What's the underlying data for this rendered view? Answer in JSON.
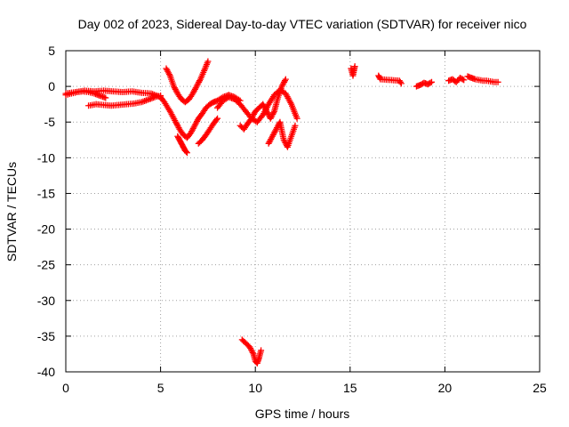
{
  "chart_data": {
    "type": "scatter",
    "title": "Day 002 of 2023, Sidereal Day-to-day VTEC variation (SDTVAR) for receiver nico",
    "xlabel": "GPS time / hours",
    "ylabel": "SDTVAR / TECUs",
    "xlim": [
      0,
      25
    ],
    "ylim": [
      -40,
      5
    ],
    "xticks": [
      0,
      5,
      10,
      15,
      20,
      25
    ],
    "yticks": [
      5,
      0,
      -5,
      -10,
      -15,
      -20,
      -25,
      -30,
      -35,
      -40
    ],
    "xtick_labels": [
      "0",
      "5",
      "10",
      "15",
      "20",
      "25"
    ],
    "ytick_labels": [
      "5",
      "0",
      "-5",
      "-10",
      "-15",
      "-20",
      "-25",
      "-30",
      "-35",
      "-40"
    ],
    "grid": true,
    "legend": "none",
    "marker": "plus",
    "color": "#ff0000",
    "series": [
      {
        "name": "track-1",
        "x": [
          0.0,
          0.5,
          1.0,
          1.5,
          2.0,
          2.5,
          3.0,
          3.5,
          4.0,
          4.5,
          5.0,
          5.2,
          5.5,
          5.8,
          6.0,
          6.2,
          6.4,
          6.6,
          6.8,
          7.0,
          7.2,
          7.4,
          7.6,
          7.8,
          8.0,
          8.3,
          8.6,
          8.9,
          9.2
        ],
        "y": [
          -1.0,
          -0.8,
          -0.6,
          -0.7,
          -0.6,
          -0.7,
          -0.8,
          -0.7,
          -0.9,
          -1.0,
          -1.5,
          -2.2,
          -3.5,
          -5.0,
          -6.0,
          -6.8,
          -7.2,
          -6.5,
          -5.5,
          -4.5,
          -3.8,
          -3.0,
          -2.5,
          -2.2,
          -2.0,
          -1.5,
          -1.2,
          -1.5,
          -2.0
        ]
      },
      {
        "name": "track-2",
        "x": [
          0.0,
          0.3,
          0.6,
          0.9,
          1.2,
          1.5,
          1.8,
          2.1
        ],
        "y": [
          -1.2,
          -1.0,
          -0.8,
          -0.7,
          -0.8,
          -1.0,
          -1.3,
          -1.6
        ]
      },
      {
        "name": "track-3",
        "x": [
          1.2,
          1.6,
          2.0,
          2.4,
          2.8,
          3.2,
          3.6,
          4.0,
          4.4,
          4.7,
          5.0
        ],
        "y": [
          -2.7,
          -2.5,
          -2.6,
          -2.7,
          -2.6,
          -2.5,
          -2.4,
          -2.2,
          -1.8,
          -1.5,
          -1.3
        ]
      },
      {
        "name": "track-4",
        "x": [
          5.3,
          5.5,
          5.7,
          5.9,
          6.1,
          6.3,
          6.5,
          6.7,
          6.9,
          7.1,
          7.3,
          7.5
        ],
        "y": [
          2.5,
          1.5,
          0.0,
          -1.0,
          -1.8,
          -2.2,
          -1.8,
          -1.0,
          0.0,
          1.0,
          2.2,
          3.5
        ]
      },
      {
        "name": "track-5",
        "x": [
          5.9,
          6.0,
          6.1,
          6.2,
          6.3,
          6.4
        ],
        "y": [
          -7.0,
          -7.5,
          -8.0,
          -8.5,
          -9.0,
          -9.3
        ]
      },
      {
        "name": "track-6",
        "x": [
          7.0,
          7.2,
          7.4,
          7.6,
          7.8,
          8.0
        ],
        "y": [
          -8.0,
          -7.5,
          -6.8,
          -6.0,
          -5.2,
          -4.5
        ]
      },
      {
        "name": "track-7",
        "x": [
          8.0,
          8.3,
          8.6,
          8.9,
          9.2,
          9.5,
          9.8,
          10.1,
          10.4,
          10.7,
          11.0,
          11.3,
          11.6,
          11.9,
          12.2
        ],
        "y": [
          -3.0,
          -2.0,
          -1.5,
          -1.8,
          -2.5,
          -3.5,
          -4.5,
          -5.0,
          -4.0,
          -2.5,
          -1.2,
          -0.5,
          -1.0,
          -2.5,
          -4.5
        ]
      },
      {
        "name": "track-8",
        "x": [
          9.2,
          9.4,
          9.6,
          9.8,
          10.0,
          10.2,
          10.4,
          10.6,
          10.8,
          11.0,
          11.2,
          11.4,
          11.6
        ],
        "y": [
          -5.5,
          -6.0,
          -5.2,
          -4.5,
          -3.5,
          -3.0,
          -2.5,
          -3.5,
          -4.5,
          -3.5,
          -1.5,
          0.0,
          1.0
        ]
      },
      {
        "name": "track-9",
        "x": [
          10.7,
          10.9,
          11.1,
          11.3,
          11.5,
          11.7,
          11.9,
          12.1
        ],
        "y": [
          -8.0,
          -7.0,
          -6.0,
          -5.0,
          -7.5,
          -8.5,
          -7.0,
          -5.5
        ]
      },
      {
        "name": "track-10",
        "x": [
          9.3,
          9.5,
          9.7,
          9.9,
          10.0,
          10.1,
          10.2,
          10.3
        ],
        "y": [
          -35.5,
          -36.0,
          -36.5,
          -37.5,
          -38.5,
          -38.8,
          -38.0,
          -37.0
        ]
      },
      {
        "name": "track-11",
        "x": [
          15.05,
          15.1,
          15.15,
          15.2,
          15.25
        ],
        "y": [
          2.5,
          2.0,
          1.5,
          2.2,
          2.8
        ]
      },
      {
        "name": "track-12",
        "x": [
          16.5,
          16.6,
          17.6,
          17.7
        ],
        "y": [
          1.5,
          1.0,
          0.8,
          0.4
        ]
      },
      {
        "name": "track-13",
        "x": [
          18.5,
          18.7,
          18.9,
          19.1,
          19.3
        ],
        "y": [
          0.0,
          0.2,
          0.5,
          0.3,
          0.6
        ]
      },
      {
        "name": "track-14",
        "x": [
          20.2,
          20.4,
          20.6,
          20.8,
          21.0
        ],
        "y": [
          0.8,
          1.0,
          0.6,
          1.2,
          0.9
        ]
      },
      {
        "name": "track-15",
        "x": [
          21.2,
          21.4,
          21.6,
          21.8,
          22.0,
          22.2,
          22.4,
          22.6,
          22.8
        ],
        "y": [
          1.4,
          1.2,
          1.0,
          0.9,
          0.8,
          0.8,
          0.7,
          0.6,
          0.6
        ]
      }
    ]
  }
}
